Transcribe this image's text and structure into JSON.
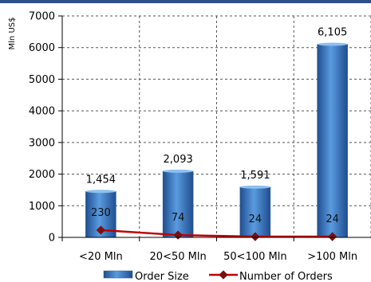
{
  "chart_data": {
    "type": "bar+line",
    "title": "",
    "ylabel": "Mln US$",
    "ylim": [
      0,
      7000
    ],
    "yticks": [
      0,
      1000,
      2000,
      3000,
      4000,
      5000,
      6000,
      7000
    ],
    "categories": [
      "<20 Mln",
      "20<50 Mln",
      "50<100 Mln",
      ">100 Mln"
    ],
    "series": [
      {
        "name": "Order Size",
        "type": "bar",
        "values": [
          1454,
          2093,
          1591,
          6105
        ],
        "labels": [
          "1,454",
          "2,093",
          "1,591",
          "6,105"
        ]
      },
      {
        "name": "Number of Orders",
        "type": "line",
        "values": [
          230,
          74,
          24,
          24
        ],
        "labels": [
          "230",
          "74",
          "24",
          "24"
        ]
      }
    ],
    "grid": true,
    "legend": "bottom",
    "colors": {
      "bars": "#3a78c3",
      "line": "#c00000",
      "marker": "#7a1010"
    }
  }
}
